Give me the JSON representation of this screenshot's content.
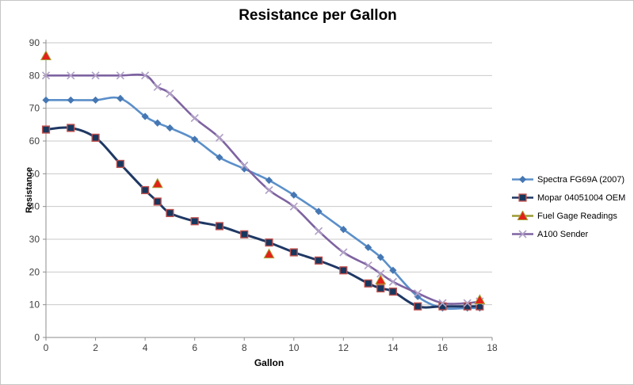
{
  "chart_data": {
    "type": "line",
    "title": "Resistance per Gallon",
    "xlabel": "Gallon",
    "ylabel": "Resistance",
    "xlim": [
      0,
      18
    ],
    "ylim": [
      0,
      90
    ],
    "x_ticks": [
      0,
      2,
      4,
      6,
      8,
      10,
      12,
      14,
      16,
      18
    ],
    "y_ticks": [
      0,
      10,
      20,
      30,
      40,
      50,
      60,
      70,
      80,
      90
    ],
    "grid": "horizontal",
    "legend_position": "right",
    "x": [
      0,
      1,
      2,
      3,
      4,
      4.5,
      5,
      6,
      7,
      8,
      9,
      10,
      11,
      12,
      13,
      13.5,
      14,
      15,
      16,
      17,
      17.5
    ],
    "series": [
      {
        "name": "Spectra FG69A (2007)",
        "marker": "diamond",
        "line": true,
        "color": "#5B8FC9",
        "marker_color": "#4577B3",
        "values": [
          72.5,
          72.5,
          72.5,
          73,
          67.5,
          65.5,
          64,
          60.5,
          55,
          51.5,
          48,
          43.5,
          38.5,
          33,
          27.5,
          24.5,
          20.5,
          12.5,
          9,
          9,
          9
        ]
      },
      {
        "name": "Mopar 04051004 OEM",
        "marker": "square",
        "line": true,
        "color": "#1F3864",
        "marker_color": "#17375E",
        "marker_edge": "#C0504D",
        "values": [
          63.5,
          64,
          61,
          53,
          45,
          41.5,
          38,
          35.5,
          34,
          31.5,
          29,
          26,
          23.5,
          20.5,
          16.5,
          15,
          14,
          9.5,
          9.5,
          9.5,
          9.5
        ]
      },
      {
        "name": "Fuel Gage Readings",
        "marker": "triangle",
        "line": false,
        "color": "#9A9A33",
        "marker_color": "#E32119",
        "marker_edge": "#A6A437",
        "x": [
          0,
          4.5,
          9,
          13.5,
          17.5
        ],
        "values": [
          86,
          47,
          25.5,
          17.5,
          11.5
        ]
      },
      {
        "name": "A100 Sender",
        "marker": "x",
        "line": true,
        "color": "#7E63A1",
        "marker_color": "#B2A2C7",
        "values": [
          80,
          80,
          80,
          80,
          80,
          76.5,
          74.5,
          67,
          61,
          52.5,
          45,
          40,
          32.5,
          26,
          22,
          19.5,
          17,
          13.5,
          10.5,
          10.5,
          11
        ]
      }
    ],
    "colors": {
      "gridline": "#C9C9C9",
      "axis": "#8E8E8E",
      "tick_text": "#3F3F3F"
    }
  }
}
